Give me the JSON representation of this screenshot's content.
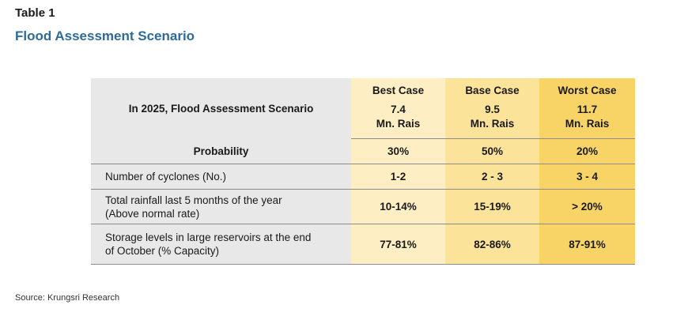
{
  "header": {
    "table_label": "Table 1",
    "title": "Flood Assessment Scenario"
  },
  "table": {
    "heading": "In 2025, Flood Assessment Scenario",
    "columns": [
      {
        "name": "Best Case",
        "value": "7.4",
        "unit": "Mn. Rais"
      },
      {
        "name": "Base Case",
        "value": "9.5",
        "unit": "Mn. Rais"
      },
      {
        "name": "Worst Case",
        "value": "11.7",
        "unit": "Mn. Rais"
      }
    ],
    "probability": {
      "label": "Probability",
      "values": [
        "30%",
        "50%",
        "20%"
      ]
    },
    "rows": [
      {
        "label_line1": "Number of cyclones (No.)",
        "label_line2": "",
        "values": [
          "1-2",
          "2 - 3",
          "3 - 4"
        ]
      },
      {
        "label_line1": "Total rainfall last 5 months of the year",
        "label_line2": "(Above normal rate)",
        "values": [
          "10-14%",
          "15-19%",
          "> 20%"
        ]
      },
      {
        "label_line1": "Storage levels in large reservoirs at the end",
        "label_line2": "of October (% Capacity)",
        "values": [
          "77-81%",
          "82-86%",
          "87-91%"
        ]
      }
    ]
  },
  "footer": {
    "source": "Source: Krungsri Research"
  },
  "colors": {
    "title": "#2e6a9a",
    "label_bg": "#e9e8e8",
    "best_bg": "#fdeec3",
    "base_bg": "#fbe39a",
    "worst_bg": "#f8d466"
  }
}
